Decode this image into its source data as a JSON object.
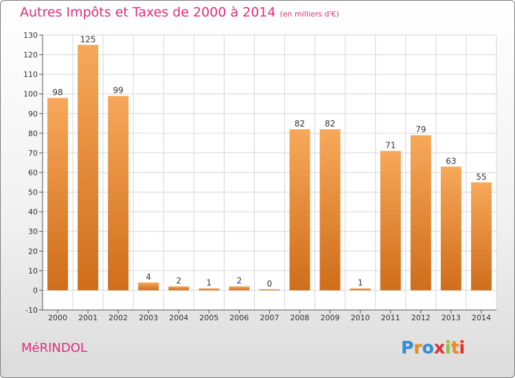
{
  "header": {
    "title": "Autres Impôts et Taxes de 2000 à 2014",
    "subtitle": "(en milliers d'€)"
  },
  "footer": {
    "commune": "MéRINDOL",
    "logo_text": "Proxiti",
    "logo_colors": [
      "#2f8ed8",
      "#f08a1a",
      "#2f8ed8",
      "#e23030",
      "#8fc13c",
      "#f08a1a",
      "#e23030"
    ]
  },
  "colors": {
    "accent": "#de2d7a",
    "bar_light": "#f7a85a",
    "bar_dark": "#cf6d1a",
    "grid": "#d6d6d6"
  },
  "chart_data": {
    "type": "bar",
    "title": "Autres Impôts et Taxes de 2000 à 2014",
    "subtitle": "(en milliers d'€)",
    "categories": [
      "2000",
      "2001",
      "2002",
      "2003",
      "2004",
      "2005",
      "2006",
      "2007",
      "2008",
      "2009",
      "2010",
      "2011",
      "2012",
      "2013",
      "2014"
    ],
    "values": [
      98,
      125,
      99,
      4,
      2,
      1,
      2,
      0,
      82,
      82,
      1,
      71,
      79,
      63,
      55
    ],
    "ylim": [
      -10,
      130
    ],
    "yticks": [
      -10,
      0,
      10,
      20,
      30,
      40,
      50,
      60,
      70,
      80,
      90,
      100,
      110,
      120,
      130
    ],
    "xlabel": "",
    "ylabel": "",
    "grid": true
  }
}
